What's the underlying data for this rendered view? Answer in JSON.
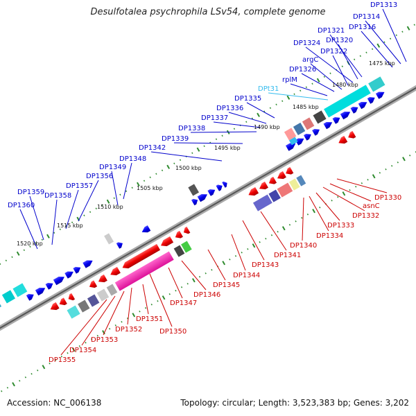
{
  "title": "Desulfotalea psychrophila LSv54, complete genome",
  "footer": {
    "accession": "Accession: NC_006138",
    "summary": "Topology: circular; Length: 3,523,383 bp; Genes: 3,202"
  },
  "colors": {
    "top_label": "#0000cc",
    "bottom_label": "#cc0000",
    "rna_label": "#33bbee",
    "backbone": "#888888",
    "scale_dots": "#2e8b2e"
  },
  "scale_ticks": [
    "1475 kbp",
    "1480 kbp",
    "1485 kbp",
    "1490 kbp",
    "1495 kbp",
    "1500 kbp",
    "1505 kbp",
    "1510 kbp",
    "1515 kbp",
    "1520 kbp"
  ],
  "top_labels": [
    {
      "text": "DP1313",
      "kind": "gene"
    },
    {
      "text": "DP1314",
      "kind": "gene"
    },
    {
      "text": "DP1316",
      "kind": "gene"
    },
    {
      "text": "DP1321",
      "kind": "gene"
    },
    {
      "text": "DP1320",
      "kind": "gene"
    },
    {
      "text": "DP1324",
      "kind": "gene"
    },
    {
      "text": "DP1322",
      "kind": "gene"
    },
    {
      "text": "argC",
      "kind": "gene"
    },
    {
      "text": "DP1326",
      "kind": "gene"
    },
    {
      "text": "rplM",
      "kind": "gene"
    },
    {
      "text": "DPt31",
      "kind": "rna"
    },
    {
      "text": "DP1335",
      "kind": "gene"
    },
    {
      "text": "DP1336",
      "kind": "gene"
    },
    {
      "text": "DP1337",
      "kind": "gene"
    },
    {
      "text": "DP1338",
      "kind": "gene"
    },
    {
      "text": "DP1339",
      "kind": "gene"
    },
    {
      "text": "DP1342",
      "kind": "gene"
    },
    {
      "text": "DP1348",
      "kind": "gene"
    },
    {
      "text": "DP1349",
      "kind": "gene"
    },
    {
      "text": "DP1356",
      "kind": "gene"
    },
    {
      "text": "DP1357",
      "kind": "gene"
    },
    {
      "text": "DP1359",
      "kind": "gene"
    },
    {
      "text": "DP1358",
      "kind": "gene"
    },
    {
      "text": "DP1360",
      "kind": "gene"
    }
  ],
  "bottom_labels": [
    {
      "text": "DP1330"
    },
    {
      "text": "asnC"
    },
    {
      "text": "DP1332"
    },
    {
      "text": "DP1333"
    },
    {
      "text": "DP1334"
    },
    {
      "text": "DP1340"
    },
    {
      "text": "DP1341"
    },
    {
      "text": "DP1343"
    },
    {
      "text": "DP1344"
    },
    {
      "text": "DP1345"
    },
    {
      "text": "DP1346"
    },
    {
      "text": "DP1347"
    },
    {
      "text": "DP1350"
    },
    {
      "text": "DP1351"
    },
    {
      "text": "DP1352"
    },
    {
      "text": "DP1353"
    },
    {
      "text": "DP1354"
    },
    {
      "text": "DP1355"
    }
  ]
}
